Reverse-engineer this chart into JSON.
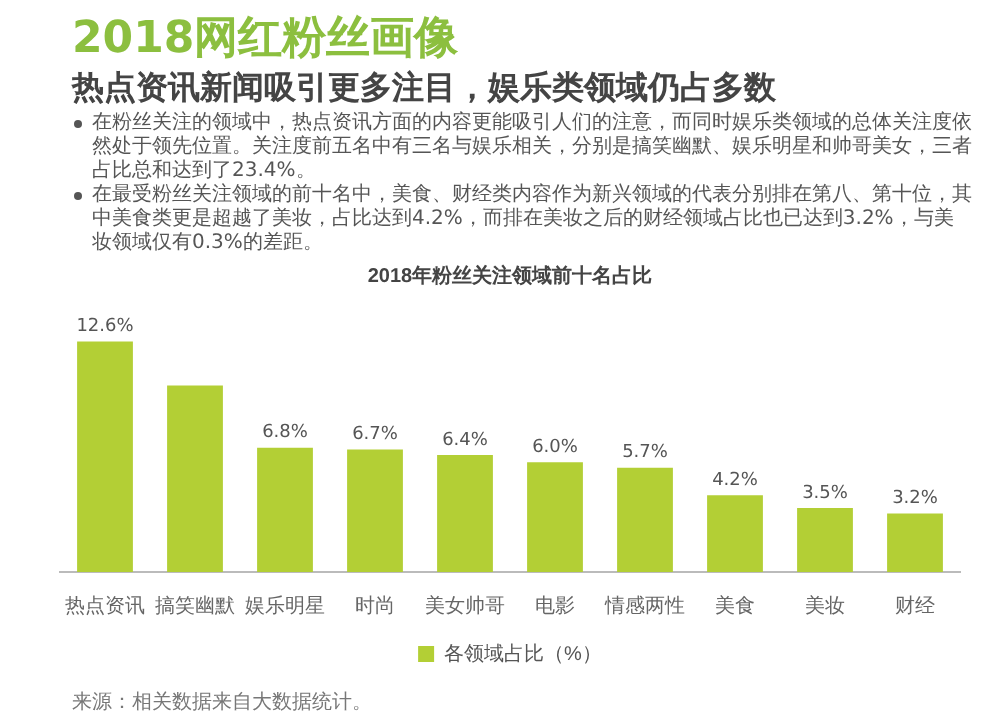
{
  "chart_data": {
    "type": "bar",
    "title": "2018网红粉丝画像",
    "subtitle": "热点资讯新闻吸引更多注目，娱乐类领域仍占多数",
    "annotations": [
      "在粉丝关注的领域中，热点资讯方面的内容更能吸引人们的注意，而同时娱乐类领域的总体关注度依然处于领先位置。关注度前五名中有三名与娱乐相关，分别是搞笑幽默、娱乐明星和帅哥美女，三者占比总和达到了23.4%。",
      "在最受粉丝关注领域的前十名中，美食、财经类内容作为新兴领域的代表分别排在第八、第十位，其中美食类更是超越了美妆，占比达到4.2%，而排在美妆之后的财经领域占比也已达到3.2%，与美妆领域仅有0.3%的差距。",
      "2018年粉丝关注领域前十名占比",
      "来源：相关数据来自大数据统计。"
    ],
    "categories": [
      "热点资讯",
      "搞笑幽默",
      "娱乐明星",
      "时尚",
      "美女帅哥",
      "电影",
      "情感两性",
      "美食",
      "美妆",
      "财经"
    ],
    "series": [
      {
        "name": "各领域占比（%）",
        "color": "#b3cf35",
        "values": [
          12.6,
          10.2,
          6.8,
          6.7,
          6.4,
          6.0,
          5.7,
          4.2,
          3.5,
          3.2
        ],
        "value_labels": [
          "12.6%",
          null,
          "6.8%",
          "6.7%",
          "6.4%",
          "6.0%",
          "5.7%",
          "4.2%",
          "3.5%",
          "3.2%"
        ]
      }
    ],
    "legend": "bottom",
    "grid": false
  }
}
